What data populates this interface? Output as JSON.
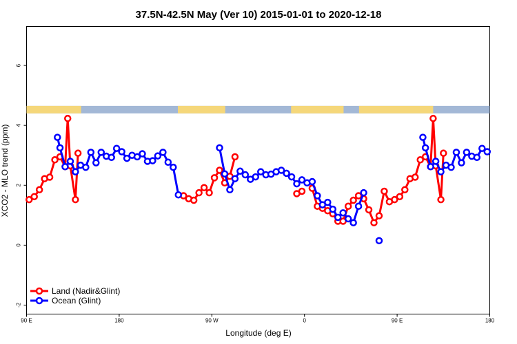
{
  "chart_data": {
    "type": "line",
    "title": "37.5N-42.5N May (Ver 10)   2015-01-01 to 2020-12-18",
    "xlabel": "Longitude (deg E)",
    "ylabel": "XCO2 - MLO trend (ppm)",
    "xlim": [
      90,
      540
    ],
    "ylim": [
      -2.3,
      7.3
    ],
    "x_ticks": [
      {
        "value": 90,
        "label": "90 E"
      },
      {
        "value": 180,
        "label": "180"
      },
      {
        "value": 270,
        "label": "90 W"
      },
      {
        "value": 360,
        "label": "0"
      },
      {
        "value": 450,
        "label": "90 E"
      },
      {
        "value": 540,
        "label": "180"
      }
    ],
    "y_ticks": [
      {
        "value": -2,
        "label": "-2"
      },
      {
        "value": 0,
        "label": "0"
      },
      {
        "value": 2,
        "label": "2"
      },
      {
        "value": 4,
        "label": "4"
      },
      {
        "value": 6,
        "label": "6"
      }
    ],
    "land_sea_band": {
      "y_range": [
        4.4,
        4.65
      ],
      "land_color": "#f5d77a",
      "ocean_color": "#a3b8d6",
      "land_segments": [
        [
          90,
          143
        ],
        [
          237,
          283
        ],
        [
          347,
          398
        ],
        [
          413,
          485
        ]
      ]
    },
    "legend": {
      "position": "bottom-left"
    },
    "series": [
      {
        "name": "Land (Nadir&Glint)",
        "color": "#ff0000",
        "segments": [
          [
            [
              92.5,
              1.52
            ],
            [
              97.5,
              1.62
            ],
            [
              102.5,
              1.85
            ],
            [
              107.5,
              2.22
            ],
            [
              112.5,
              2.27
            ],
            [
              117.5,
              2.85
            ],
            [
              122.5,
              2.95
            ],
            [
              127.5,
              2.62
            ],
            [
              130,
              4.23
            ],
            [
              132.5,
              2.65
            ],
            [
              137.5,
              1.52
            ],
            [
              140,
              3.07
            ]
          ],
          [
            [
              242.5,
              1.65
            ],
            [
              247.5,
              1.55
            ],
            [
              252.5,
              1.5
            ],
            [
              257.5,
              1.75
            ],
            [
              262.5,
              1.92
            ],
            [
              267.5,
              1.75
            ],
            [
              272.5,
              2.25
            ],
            [
              277.5,
              2.5
            ],
            [
              282.5,
              2.08
            ],
            [
              287.5,
              2.3
            ],
            [
              292.5,
              2.95
            ]
          ],
          [
            [
              352.5,
              1.72
            ],
            [
              357.5,
              1.8
            ]
          ],
          [
            [
              367.5,
              1.9
            ],
            [
              372.5,
              1.3
            ],
            [
              377.5,
              1.23
            ],
            [
              382.5,
              1.15
            ],
            [
              387.5,
              1.05
            ],
            [
              392.5,
              0.8
            ],
            [
              397.5,
              0.8
            ],
            [
              402.5,
              1.3
            ],
            [
              407.5,
              1.5
            ],
            [
              412.5,
              1.65
            ],
            [
              417.5,
              1.55
            ],
            [
              422.5,
              1.18
            ],
            [
              427.5,
              0.75
            ],
            [
              432.5,
              0.98
            ],
            [
              437.5,
              1.8
            ],
            [
              442.5,
              1.45
            ],
            [
              447.5,
              1.52
            ],
            [
              452.5,
              1.62
            ],
            [
              457.5,
              1.85
            ],
            [
              462.5,
              2.22
            ],
            [
              467.5,
              2.27
            ],
            [
              472.5,
              2.85
            ],
            [
              477.5,
              2.95
            ],
            [
              482.5,
              2.62
            ],
            [
              485,
              4.23
            ],
            [
              487.5,
              2.65
            ],
            [
              492.5,
              1.52
            ],
            [
              495,
              3.07
            ]
          ]
        ]
      },
      {
        "name": "Ocean (Glint)",
        "color": "#0000ff",
        "segments": [
          [
            [
              120,
              3.6
            ],
            [
              122.5,
              3.25
            ],
            [
              127.5,
              2.62
            ],
            [
              132.5,
              2.8
            ],
            [
              137.5,
              2.45
            ],
            [
              142.5,
              2.67
            ],
            [
              147.5,
              2.6
            ],
            [
              152.5,
              3.1
            ],
            [
              157.5,
              2.75
            ],
            [
              162.5,
              3.1
            ],
            [
              167.5,
              2.97
            ],
            [
              172.5,
              2.93
            ],
            [
              177.5,
              3.23
            ],
            [
              182.5,
              3.12
            ],
            [
              187.5,
              2.9
            ],
            [
              192.5,
              3.0
            ],
            [
              197.5,
              2.95
            ],
            [
              202.5,
              3.05
            ],
            [
              207.5,
              2.8
            ],
            [
              212.5,
              2.82
            ],
            [
              217.5,
              2.98
            ],
            [
              222.5,
              3.1
            ],
            [
              227.5,
              2.77
            ],
            [
              232.5,
              2.6
            ],
            [
              237.5,
              1.68
            ]
          ],
          [
            [
              277.5,
              3.25
            ],
            [
              282.5,
              2.38
            ],
            [
              287.5,
              1.85
            ],
            [
              292.5,
              2.22
            ],
            [
              297.5,
              2.47
            ],
            [
              302.5,
              2.35
            ],
            [
              307.5,
              2.2
            ],
            [
              312.5,
              2.28
            ],
            [
              317.5,
              2.45
            ],
            [
              322.5,
              2.35
            ],
            [
              327.5,
              2.37
            ],
            [
              332.5,
              2.45
            ],
            [
              337.5,
              2.5
            ],
            [
              342.5,
              2.4
            ],
            [
              347.5,
              2.28
            ],
            [
              352.5,
              2.05
            ],
            [
              357.5,
              2.18
            ],
            [
              362.5,
              2.08
            ],
            [
              367.5,
              2.12
            ],
            [
              372.5,
              1.65
            ],
            [
              377.5,
              1.35
            ],
            [
              382.5,
              1.43
            ],
            [
              387.5,
              1.2
            ],
            [
              392.5,
              0.93
            ],
            [
              397.5,
              1.08
            ],
            [
              402.5,
              0.88
            ],
            [
              407.5,
              0.75
            ],
            [
              412.5,
              1.3
            ],
            [
              417.5,
              1.75
            ]
          ],
          [
            [
              432.5,
              0.15
            ]
          ],
          [
            [
              475,
              3.6
            ],
            [
              477.5,
              3.25
            ],
            [
              482.5,
              2.62
            ],
            [
              487.5,
              2.8
            ],
            [
              492.5,
              2.45
            ],
            [
              497.5,
              2.67
            ],
            [
              502.5,
              2.6
            ],
            [
              507.5,
              3.1
            ],
            [
              512.5,
              2.75
            ],
            [
              517.5,
              3.1
            ],
            [
              522.5,
              2.97
            ],
            [
              527.5,
              2.93
            ],
            [
              532.5,
              3.23
            ],
            [
              537.5,
              3.12
            ]
          ]
        ]
      }
    ]
  }
}
